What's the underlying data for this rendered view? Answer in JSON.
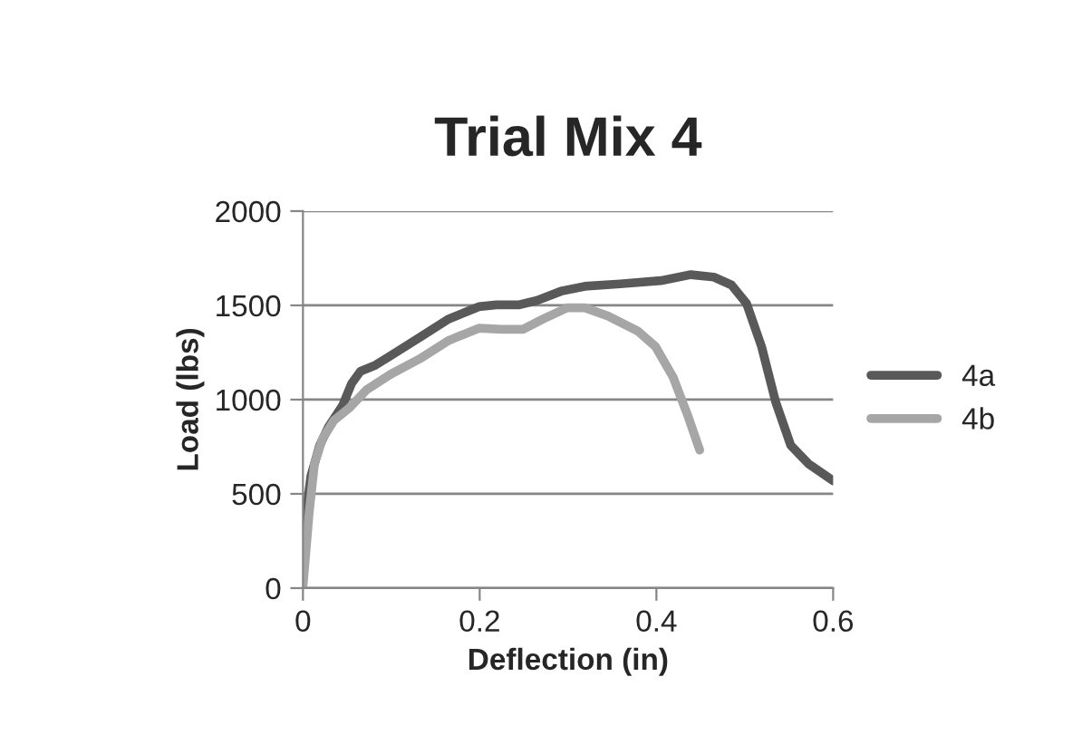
{
  "chart_data": {
    "type": "line",
    "title": "Trial Mix 4",
    "xlabel": "Deflection (in)",
    "ylabel": "Load (lbs)",
    "xlim": [
      0,
      0.6
    ],
    "xticks": [
      0,
      0.2,
      0.4,
      0.6
    ],
    "ylim": [
      0,
      2000
    ],
    "yticks": [
      0,
      500,
      1000,
      1500,
      2000
    ],
    "grid": "y",
    "legend": "right",
    "marker": "none",
    "line_style": "solid",
    "series": [
      {
        "name": "4a",
        "color": "#595959",
        "x": [
          0,
          0.009,
          0.019,
          0.029,
          0.045,
          0.055,
          0.065,
          0.082,
          0.099,
          0.132,
          0.165,
          0.199,
          0.219,
          0.245,
          0.265,
          0.292,
          0.319,
          0.359,
          0.405,
          0.439,
          0.465,
          0.485,
          0.502,
          0.519,
          0.535,
          0.552,
          0.572,
          0.6
        ],
        "values": [
          268,
          595,
          758,
          856,
          970,
          1085,
          1150,
          1183,
          1232,
          1330,
          1428,
          1493,
          1503,
          1503,
          1526,
          1575,
          1601,
          1614,
          1631,
          1663,
          1650,
          1608,
          1510,
          1281,
          987,
          758,
          660,
          569
        ]
      },
      {
        "name": "4b",
        "color": "#a6a6a6",
        "x": [
          0,
          0.007,
          0.013,
          0.022,
          0.035,
          0.052,
          0.072,
          0.099,
          0.132,
          0.165,
          0.199,
          0.225,
          0.249,
          0.272,
          0.299,
          0.319,
          0.345,
          0.379,
          0.399,
          0.419,
          0.435,
          0.449
        ],
        "values": [
          7,
          399,
          660,
          791,
          889,
          954,
          1052,
          1134,
          1216,
          1314,
          1379,
          1373,
          1373,
          1428,
          1487,
          1487,
          1444,
          1363,
          1281,
          1118,
          922,
          732
        ]
      }
    ]
  }
}
